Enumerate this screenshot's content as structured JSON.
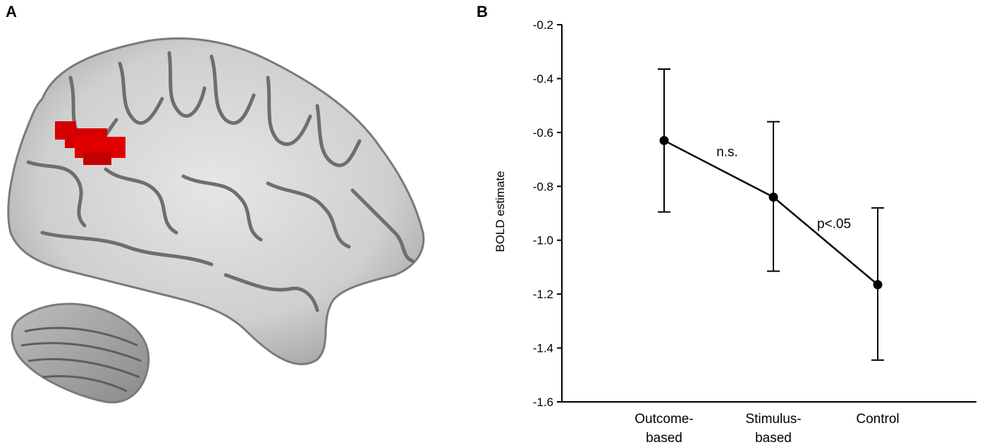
{
  "panels": {
    "a_label": "A",
    "b_label": "B"
  },
  "colors": {
    "brain_gray": "#c9c9c9",
    "sulcus_dark": "#6e6e6e",
    "activation_red": "#e00000",
    "activation_dark": "#b00000"
  },
  "chart_data": {
    "type": "line",
    "categories": [
      "Outcome-based",
      "Stimulus-based",
      "Control"
    ],
    "category_lines": [
      [
        "Outcome-",
        "based"
      ],
      [
        "Stimulus-",
        "based"
      ],
      [
        "Control"
      ]
    ],
    "values": [
      -0.63,
      -0.84,
      -1.165
    ],
    "errors_upper": [
      -0.365,
      -0.56,
      -0.88
    ],
    "errors_lower": [
      -0.895,
      -1.115,
      -1.445
    ],
    "ylabel": "BOLD estimate",
    "xlabel": "",
    "ylim": [
      -1.6,
      -0.2
    ],
    "yticks": [
      -0.2,
      -0.4,
      -0.6,
      -0.8,
      -1.0,
      -1.2,
      -1.4,
      -1.6
    ],
    "ytick_labels": [
      "-0.2",
      "-0.4",
      "-0.6",
      "-0.8",
      "-1.0",
      "-1.2",
      "-1.4",
      "-1.6"
    ],
    "annotations": [
      {
        "text": "n.s.",
        "between": [
          0,
          1
        ]
      },
      {
        "text": "p<.05",
        "between": [
          1,
          2
        ]
      }
    ],
    "grid": false,
    "legend": "none"
  }
}
